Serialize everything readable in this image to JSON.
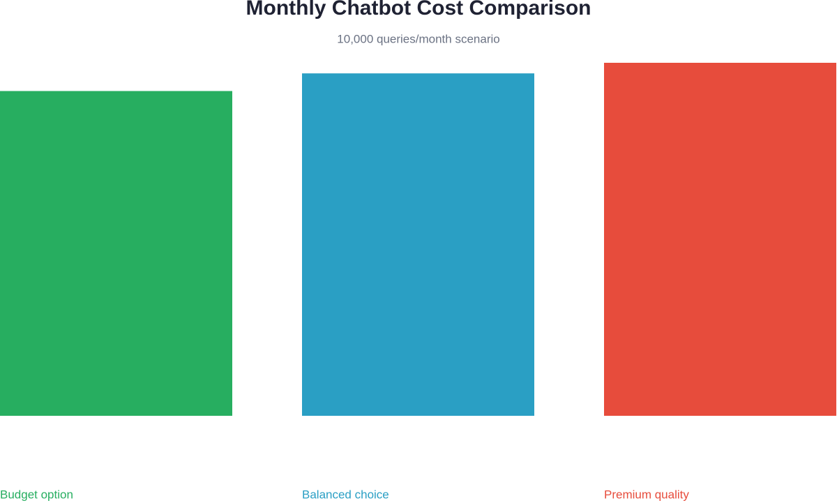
{
  "chart_data": {
    "type": "bar",
    "title": "Monthly Chatbot Cost Comparison",
    "subtitle": "10,000 queries/month scenario",
    "categories": [
      "Budget option",
      "Balanced choice",
      "Premium quality"
    ],
    "values": [
      92,
      97,
      100
    ],
    "colors": [
      "#27ae60",
      "#2a9fc4",
      "#e74c3c"
    ],
    "ylim": [
      0,
      100
    ]
  }
}
